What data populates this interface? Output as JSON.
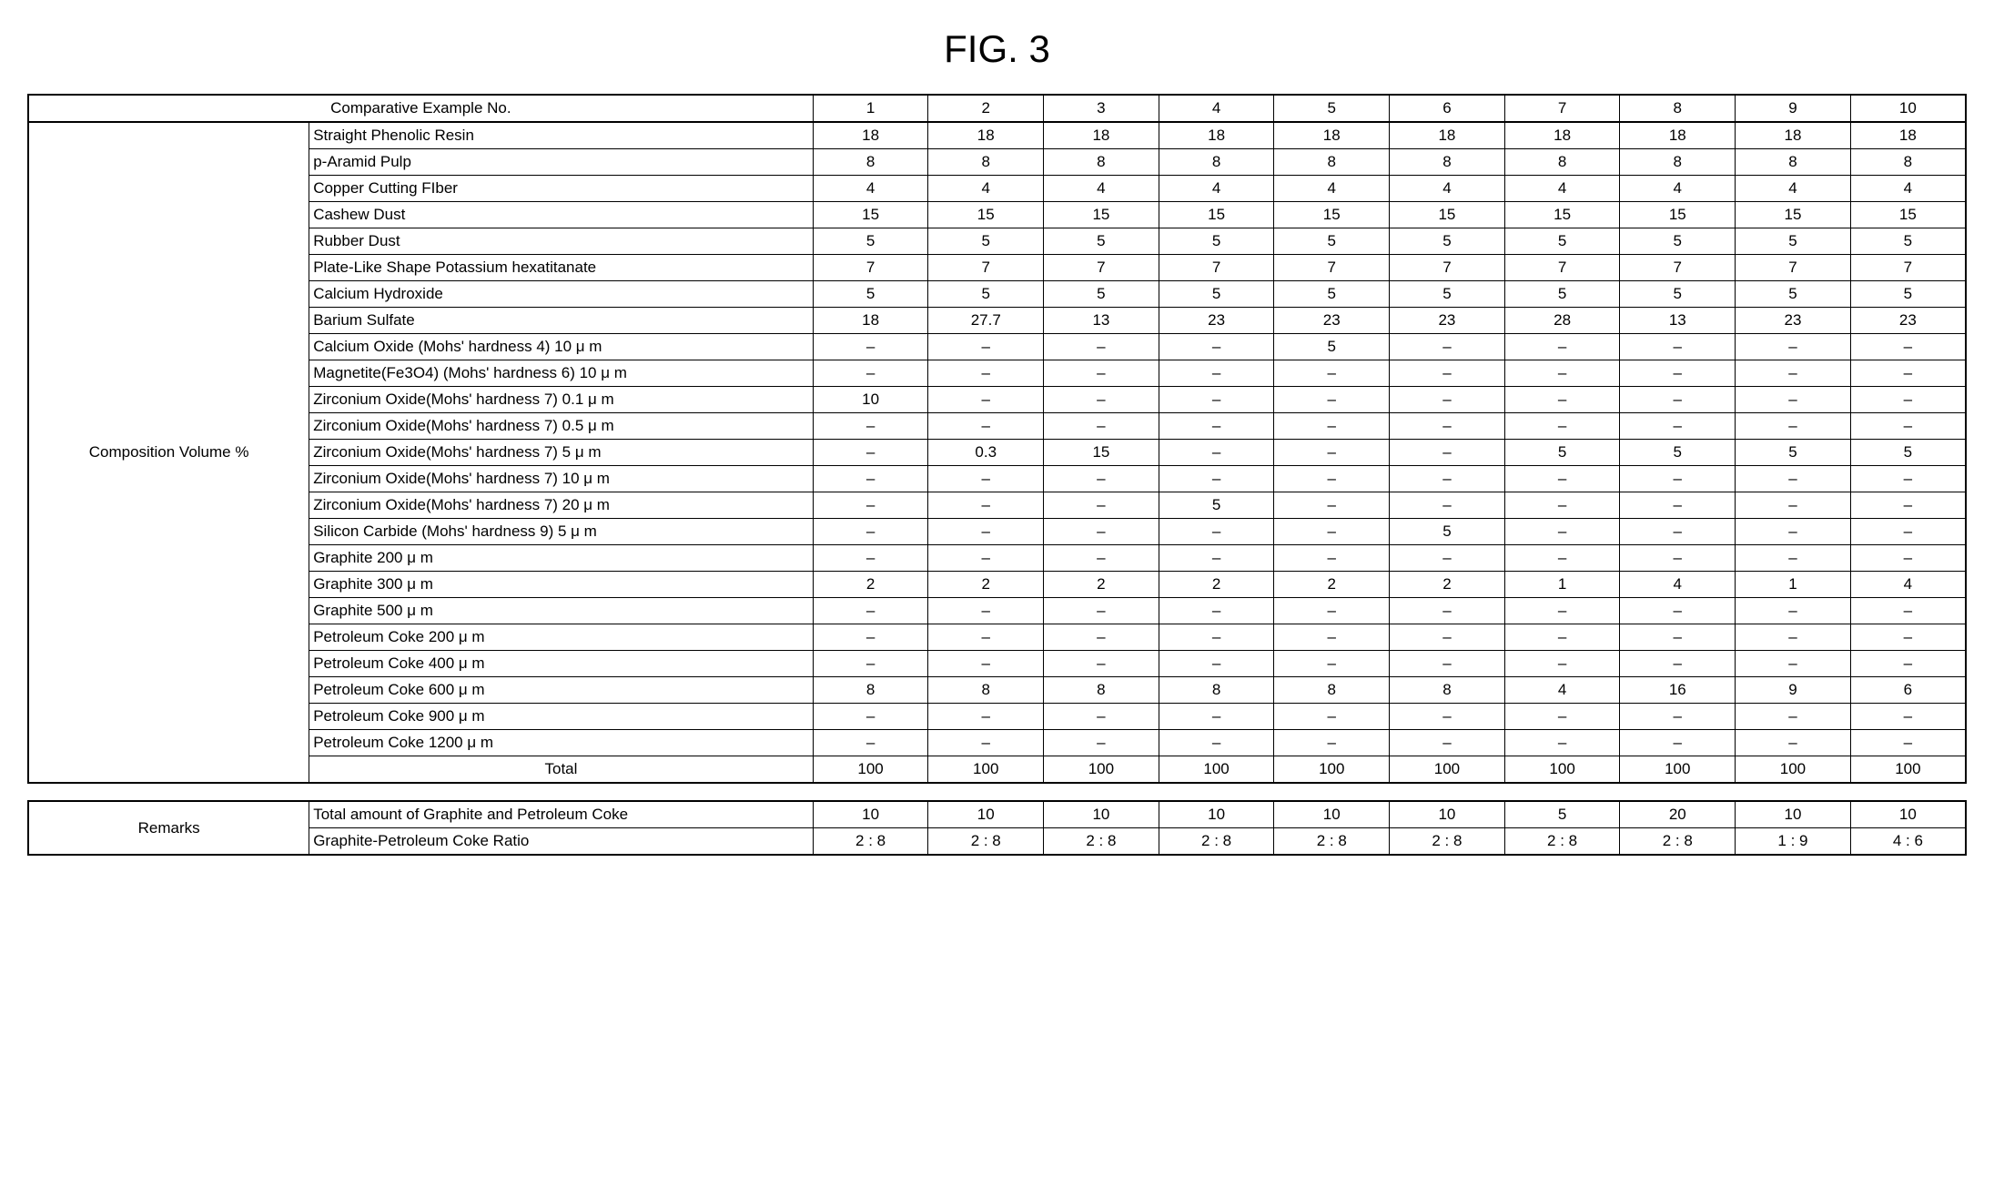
{
  "title": "FIG. 3",
  "header": {
    "label": "Comparative Example No.",
    "cols": [
      "1",
      "2",
      "3",
      "4",
      "5",
      "6",
      "7",
      "8",
      "9",
      "10"
    ]
  },
  "group_label": "Composition Volume %",
  "rows": [
    {
      "label": "Straight Phenolic Resin",
      "vals": [
        "18",
        "18",
        "18",
        "18",
        "18",
        "18",
        "18",
        "18",
        "18",
        "18"
      ]
    },
    {
      "label": "p-Aramid Pulp",
      "vals": [
        "8",
        "8",
        "8",
        "8",
        "8",
        "8",
        "8",
        "8",
        "8",
        "8"
      ]
    },
    {
      "label": "Copper Cutting FIber",
      "vals": [
        "4",
        "4",
        "4",
        "4",
        "4",
        "4",
        "4",
        "4",
        "4",
        "4"
      ]
    },
    {
      "label": "Cashew Dust",
      "vals": [
        "15",
        "15",
        "15",
        "15",
        "15",
        "15",
        "15",
        "15",
        "15",
        "15"
      ]
    },
    {
      "label": "Rubber Dust",
      "vals": [
        "5",
        "5",
        "5",
        "5",
        "5",
        "5",
        "5",
        "5",
        "5",
        "5"
      ]
    },
    {
      "label": "Plate-Like Shape Potassium hexatitanate",
      "vals": [
        "7",
        "7",
        "7",
        "7",
        "7",
        "7",
        "7",
        "7",
        "7",
        "7"
      ]
    },
    {
      "label": "Calcium Hydroxide",
      "vals": [
        "5",
        "5",
        "5",
        "5",
        "5",
        "5",
        "5",
        "5",
        "5",
        "5"
      ]
    },
    {
      "label": "Barium Sulfate",
      "vals": [
        "18",
        "27.7",
        "13",
        "23",
        "23",
        "23",
        "28",
        "13",
        "23",
        "23"
      ]
    },
    {
      "label": "Calcium Oxide (Mohs' hardness 4)  10 μ m",
      "vals": [
        "–",
        "–",
        "–",
        "–",
        "5",
        "–",
        "–",
        "–",
        "–",
        "–"
      ]
    },
    {
      "label": "Magnetite(Fe3O4) (Mohs' hardness 6)   10 μ m",
      "vals": [
        "–",
        "–",
        "–",
        "–",
        "–",
        "–",
        "–",
        "–",
        "–",
        "–"
      ]
    },
    {
      "label": "Zirconium Oxide(Mohs' hardness 7)  0.1 μ m",
      "vals": [
        "10",
        "–",
        "–",
        "–",
        "–",
        "–",
        "–",
        "–",
        "–",
        "–"
      ]
    },
    {
      "label": "Zirconium Oxide(Mohs' hardness 7)  0.5 μ m",
      "vals": [
        "–",
        "–",
        "–",
        "–",
        "–",
        "–",
        "–",
        "–",
        "–",
        "–"
      ]
    },
    {
      "label": "Zirconium Oxide(Mohs' hardness 7)  5 μ m",
      "vals": [
        "–",
        "0.3",
        "15",
        "–",
        "–",
        "–",
        "5",
        "5",
        "5",
        "5"
      ]
    },
    {
      "label": "Zirconium Oxide(Mohs' hardness 7)  10 μ m",
      "vals": [
        "–",
        "–",
        "–",
        "–",
        "–",
        "–",
        "–",
        "–",
        "–",
        "–"
      ]
    },
    {
      "label": "Zirconium Oxide(Mohs' hardness 7)  20 μ m",
      "vals": [
        "–",
        "–",
        "–",
        "5",
        "–",
        "–",
        "–",
        "–",
        "–",
        "–"
      ]
    },
    {
      "label": "Silicon Carbide (Mohs' hardness 9)  5 μ m",
      "vals": [
        "–",
        "–",
        "–",
        "–",
        "–",
        "5",
        "–",
        "–",
        "–",
        "–"
      ]
    },
    {
      "label": "Graphite  200 μ m",
      "vals": [
        "–",
        "–",
        "–",
        "–",
        "–",
        "–",
        "–",
        "–",
        "–",
        "–"
      ]
    },
    {
      "label": "Graphite  300 μ m",
      "vals": [
        "2",
        "2",
        "2",
        "2",
        "2",
        "2",
        "1",
        "4",
        "1",
        "4"
      ]
    },
    {
      "label": "Graphite  500 μ m",
      "vals": [
        "–",
        "–",
        "–",
        "–",
        "–",
        "–",
        "–",
        "–",
        "–",
        "–"
      ]
    },
    {
      "label": "Petroleum Coke  200 μ m",
      "vals": [
        "–",
        "–",
        "–",
        "–",
        "–",
        "–",
        "–",
        "–",
        "–",
        "–"
      ]
    },
    {
      "label": "Petroleum Coke  400 μ m",
      "vals": [
        "–",
        "–",
        "–",
        "–",
        "–",
        "–",
        "–",
        "–",
        "–",
        "–"
      ]
    },
    {
      "label": "Petroleum Coke  600 μ m",
      "vals": [
        "8",
        "8",
        "8",
        "8",
        "8",
        "8",
        "4",
        "16",
        "9",
        "6"
      ]
    },
    {
      "label": "Petroleum Coke  900 μ m",
      "vals": [
        "–",
        "–",
        "–",
        "–",
        "–",
        "–",
        "–",
        "–",
        "–",
        "–"
      ]
    },
    {
      "label": "Petroleum Coke  1200 μ m",
      "vals": [
        "–",
        "–",
        "–",
        "–",
        "–",
        "–",
        "–",
        "–",
        "–",
        "–"
      ]
    }
  ],
  "total": {
    "label": "Total",
    "vals": [
      "100",
      "100",
      "100",
      "100",
      "100",
      "100",
      "100",
      "100",
      "100",
      "100"
    ]
  },
  "remarks": {
    "group_label": "Remarks",
    "rows": [
      {
        "label": "Total amount of Graphite and  Petroleum Coke",
        "vals": [
          "10",
          "10",
          "10",
          "10",
          "10",
          "10",
          "5",
          "20",
          "10",
          "10"
        ]
      },
      {
        "label": "Graphite-Petroleum Coke Ratio",
        "vals": [
          "2 : 8",
          "2 : 8",
          "2 : 8",
          "2 : 8",
          "2 : 8",
          "2 : 8",
          "2 : 8",
          "2 : 8",
          "1 : 9",
          "4 : 6"
        ]
      }
    ]
  }
}
